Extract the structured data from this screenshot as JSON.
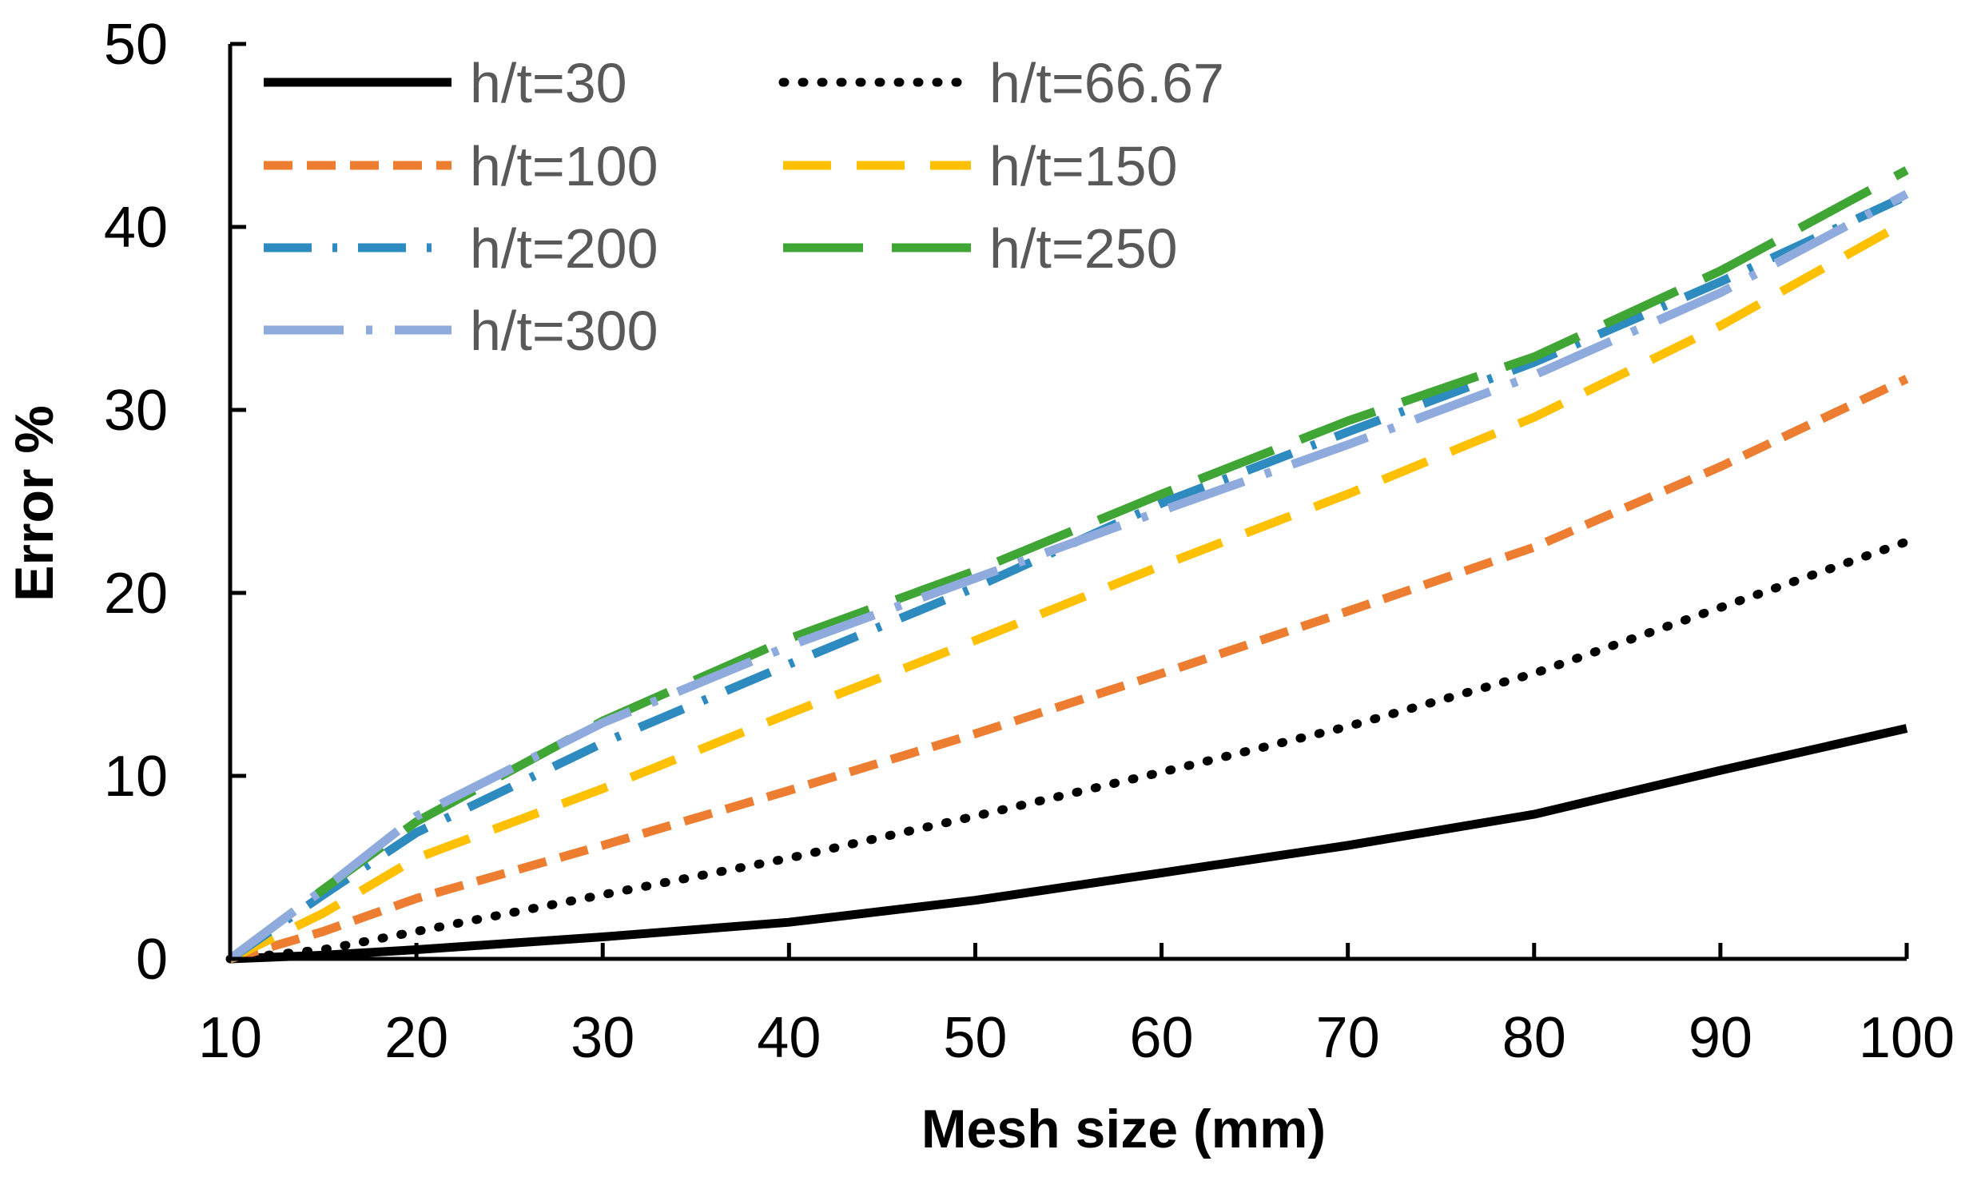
{
  "chart_data": {
    "type": "line",
    "title": "",
    "xlabel": "Mesh size (mm)",
    "ylabel": "Error %",
    "xlim": [
      10,
      100
    ],
    "ylim": [
      0,
      50
    ],
    "xticks": [
      10,
      20,
      30,
      40,
      50,
      60,
      70,
      80,
      90,
      100
    ],
    "yticks": [
      0,
      10,
      20,
      30,
      40,
      50
    ],
    "x": [
      10,
      15,
      20,
      30,
      40,
      50,
      60,
      70,
      80,
      90,
      100
    ],
    "legend_position": "top-left",
    "grid": false,
    "series": [
      {
        "name": "h/t=30",
        "style": "solid",
        "color": "#000000",
        "values": [
          0,
          0.2,
          0.5,
          1.2,
          2.0,
          3.2,
          4.7,
          6.2,
          7.9,
          10.3,
          12.6
        ]
      },
      {
        "name": "h/t=66.67",
        "style": "dotted",
        "color": "#000000",
        "values": [
          0,
          0.5,
          1.5,
          3.5,
          5.5,
          7.8,
          10.2,
          12.7,
          15.6,
          19.2,
          22.8
        ]
      },
      {
        "name": "h/t=100",
        "style": "short-dash",
        "color": "#ED7D31",
        "values": [
          0,
          1.5,
          3.3,
          6.2,
          9.2,
          12.3,
          15.6,
          19.0,
          22.5,
          26.9,
          31.7
        ]
      },
      {
        "name": "h/t=150",
        "style": "dash",
        "color": "#FFC000",
        "values": [
          0,
          2.5,
          5.5,
          9.3,
          13.4,
          17.4,
          21.5,
          25.4,
          29.6,
          34.6,
          40.3
        ]
      },
      {
        "name": "h/t=200",
        "style": "dash-dot",
        "color": "#2E8BC0",
        "values": [
          0,
          3.5,
          6.9,
          11.8,
          16.1,
          20.3,
          24.9,
          28.8,
          32.6,
          37.0,
          41.7
        ]
      },
      {
        "name": "h/t=250",
        "style": "long-dash",
        "color": "#3FA535",
        "values": [
          0,
          3.8,
          7.5,
          13.0,
          17.5,
          21.2,
          25.4,
          29.4,
          32.9,
          37.6,
          43.1
        ]
      },
      {
        "name": "h/t=300",
        "style": "long-dash-dot",
        "color": "#8FAADC",
        "values": [
          0,
          3.8,
          7.8,
          12.9,
          17.1,
          20.8,
          24.5,
          28.1,
          31.9,
          36.4,
          41.8
        ]
      }
    ]
  }
}
